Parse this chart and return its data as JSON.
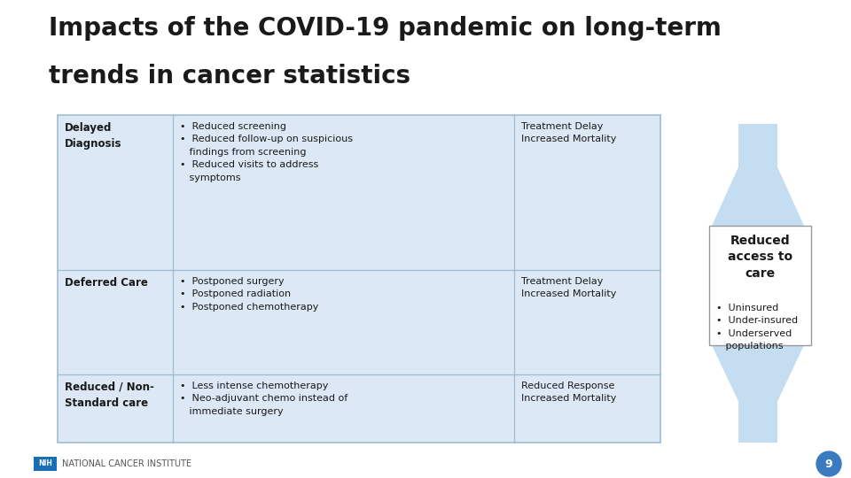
{
  "title_line1": "Impacts of the COVID-19 pandemic on long-term",
  "title_line2": "trends in cancer statistics",
  "background_color": "#ffffff",
  "table_bg": "#dce8f5",
  "border_color": "#a0bcd0",
  "rows": [
    {
      "col1": "Delayed\nDiagnosis",
      "col2": "•  Reduced screening\n•  Reduced follow-up on suspicious\n   findings from screening\n•  Reduced visits to address\n   symptoms",
      "col3": "Treatment Delay\nIncreased Mortality"
    },
    {
      "col1": "Deferred Care",
      "col2": "•  Postponed surgery\n•  Postponed radiation\n•  Postponed chemotherapy",
      "col3": "Treatment Delay\nIncreased Mortality"
    },
    {
      "col1": "Reduced / Non-\nStandard care",
      "col2": "•  Less intense chemotherapy\n•  Neo-adjuvant chemo instead of\n   immediate surgery",
      "col3": "Reduced Response\nIncreased Mortality"
    }
  ],
  "side_box_title": "Reduced\naccess to\ncare",
  "side_bullets": "•  Uninsured\n•  Under-insured\n•  Underserved\n   populations",
  "footer_text": "NATIONAL CANCER INSTITUTE",
  "page_number": "9",
  "arrow_color": "#c5ddf0",
  "title_fontsize": 20,
  "cell_fontsize": 8.5,
  "side_title_fontsize": 10,
  "side_bullet_fontsize": 8,
  "footer_fontsize": 7
}
